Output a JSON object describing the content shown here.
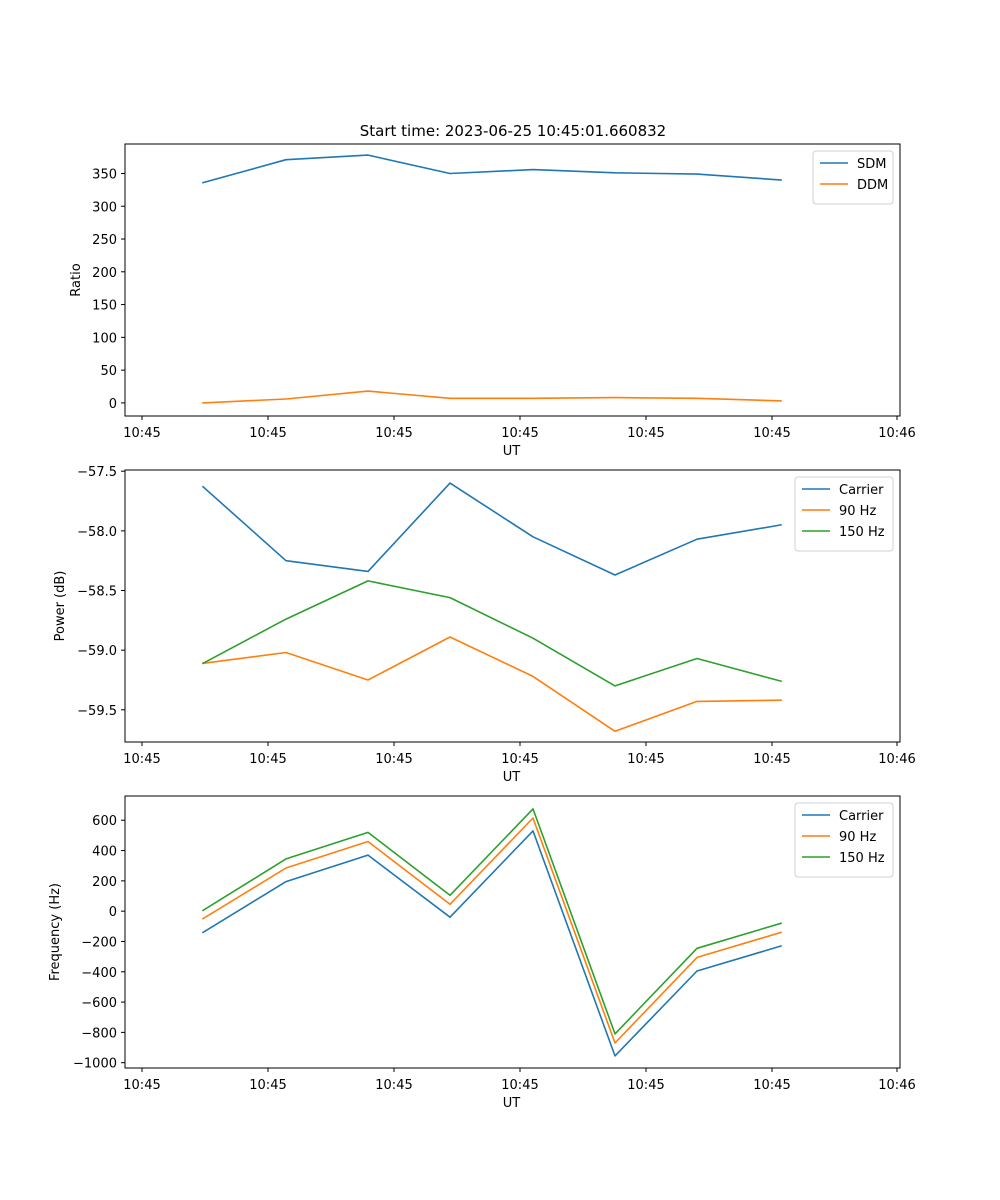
{
  "figure": {
    "title": "Start time: 2023-06-25 10:45:01.660832"
  },
  "chart_data": [
    {
      "type": "line",
      "xlabel": "UT",
      "ylabel": "Ratio",
      "x_tick_labels": [
        "10:45",
        "10:45",
        "10:45",
        "10:45",
        "10:45",
        "10:45",
        "10:45",
        "10:46"
      ],
      "yticks": [
        0,
        50,
        100,
        150,
        200,
        250,
        300,
        350
      ],
      "ylim": [
        -20,
        395
      ],
      "legend_position": "top-right",
      "series": [
        {
          "name": "SDM",
          "color": "#1f77b4",
          "values": [
            336,
            371,
            378,
            350,
            356,
            351,
            349,
            340
          ]
        },
        {
          "name": "DDM",
          "color": "#ff7f0e",
          "values": [
            0,
            6,
            18,
            7,
            7,
            8,
            7,
            3
          ]
        }
      ]
    },
    {
      "type": "line",
      "xlabel": "UT",
      "ylabel": "Power (dB)",
      "x_tick_labels": [
        "10:45",
        "10:45",
        "10:45",
        "10:45",
        "10:45",
        "10:45",
        "10:45",
        "10:46"
      ],
      "yticks": [
        -57.5,
        -58.0,
        -58.5,
        -59.0,
        -59.5
      ],
      "ytick_labels": [
        "−57.5",
        "−58.0",
        "−58.5",
        "−59.0",
        "−59.5"
      ],
      "ylim": [
        -59.77,
        -57.49
      ],
      "legend_position": "top-right",
      "series": [
        {
          "name": "Carrier",
          "color": "#1f77b4",
          "values": [
            -57.63,
            -58.25,
            -58.34,
            -57.6,
            -58.05,
            -58.37,
            -58.07,
            -57.95
          ]
        },
        {
          "name": "90 Hz",
          "color": "#ff7f0e",
          "values": [
            -59.11,
            -59.02,
            -59.25,
            -58.89,
            -59.22,
            -59.68,
            -59.43,
            -59.42
          ]
        },
        {
          "name": "150 Hz",
          "color": "#2ca02c",
          "values": [
            -59.11,
            -58.74,
            -58.42,
            -58.56,
            -58.9,
            -59.3,
            -59.07,
            -59.26
          ]
        }
      ]
    },
    {
      "type": "line",
      "xlabel": "UT",
      "ylabel": "Frequency (Hz)",
      "x_tick_labels": [
        "10:45",
        "10:45",
        "10:45",
        "10:45",
        "10:45",
        "10:45",
        "10:45",
        "10:46"
      ],
      "yticks": [
        600,
        400,
        200,
        0,
        -200,
        -400,
        -600,
        -800,
        -1000
      ],
      "ytick_labels": [
        "600",
        "400",
        "200",
        "0",
        "−200",
        "−400",
        "−600",
        "−800",
        "−1000"
      ],
      "ylim": [
        -1035,
        760
      ],
      "legend_position": "top-right",
      "series": [
        {
          "name": "Carrier",
          "color": "#1f77b4",
          "values": [
            -140,
            195,
            370,
            -40,
            530,
            -955,
            -395,
            -230
          ]
        },
        {
          "name": "90 Hz",
          "color": "#ff7f0e",
          "values": [
            -50,
            285,
            460,
            45,
            615,
            -870,
            -305,
            -140
          ]
        },
        {
          "name": "150 Hz",
          "color": "#2ca02c",
          "values": [
            5,
            345,
            520,
            105,
            675,
            -810,
            -245,
            -80
          ]
        }
      ]
    }
  ]
}
